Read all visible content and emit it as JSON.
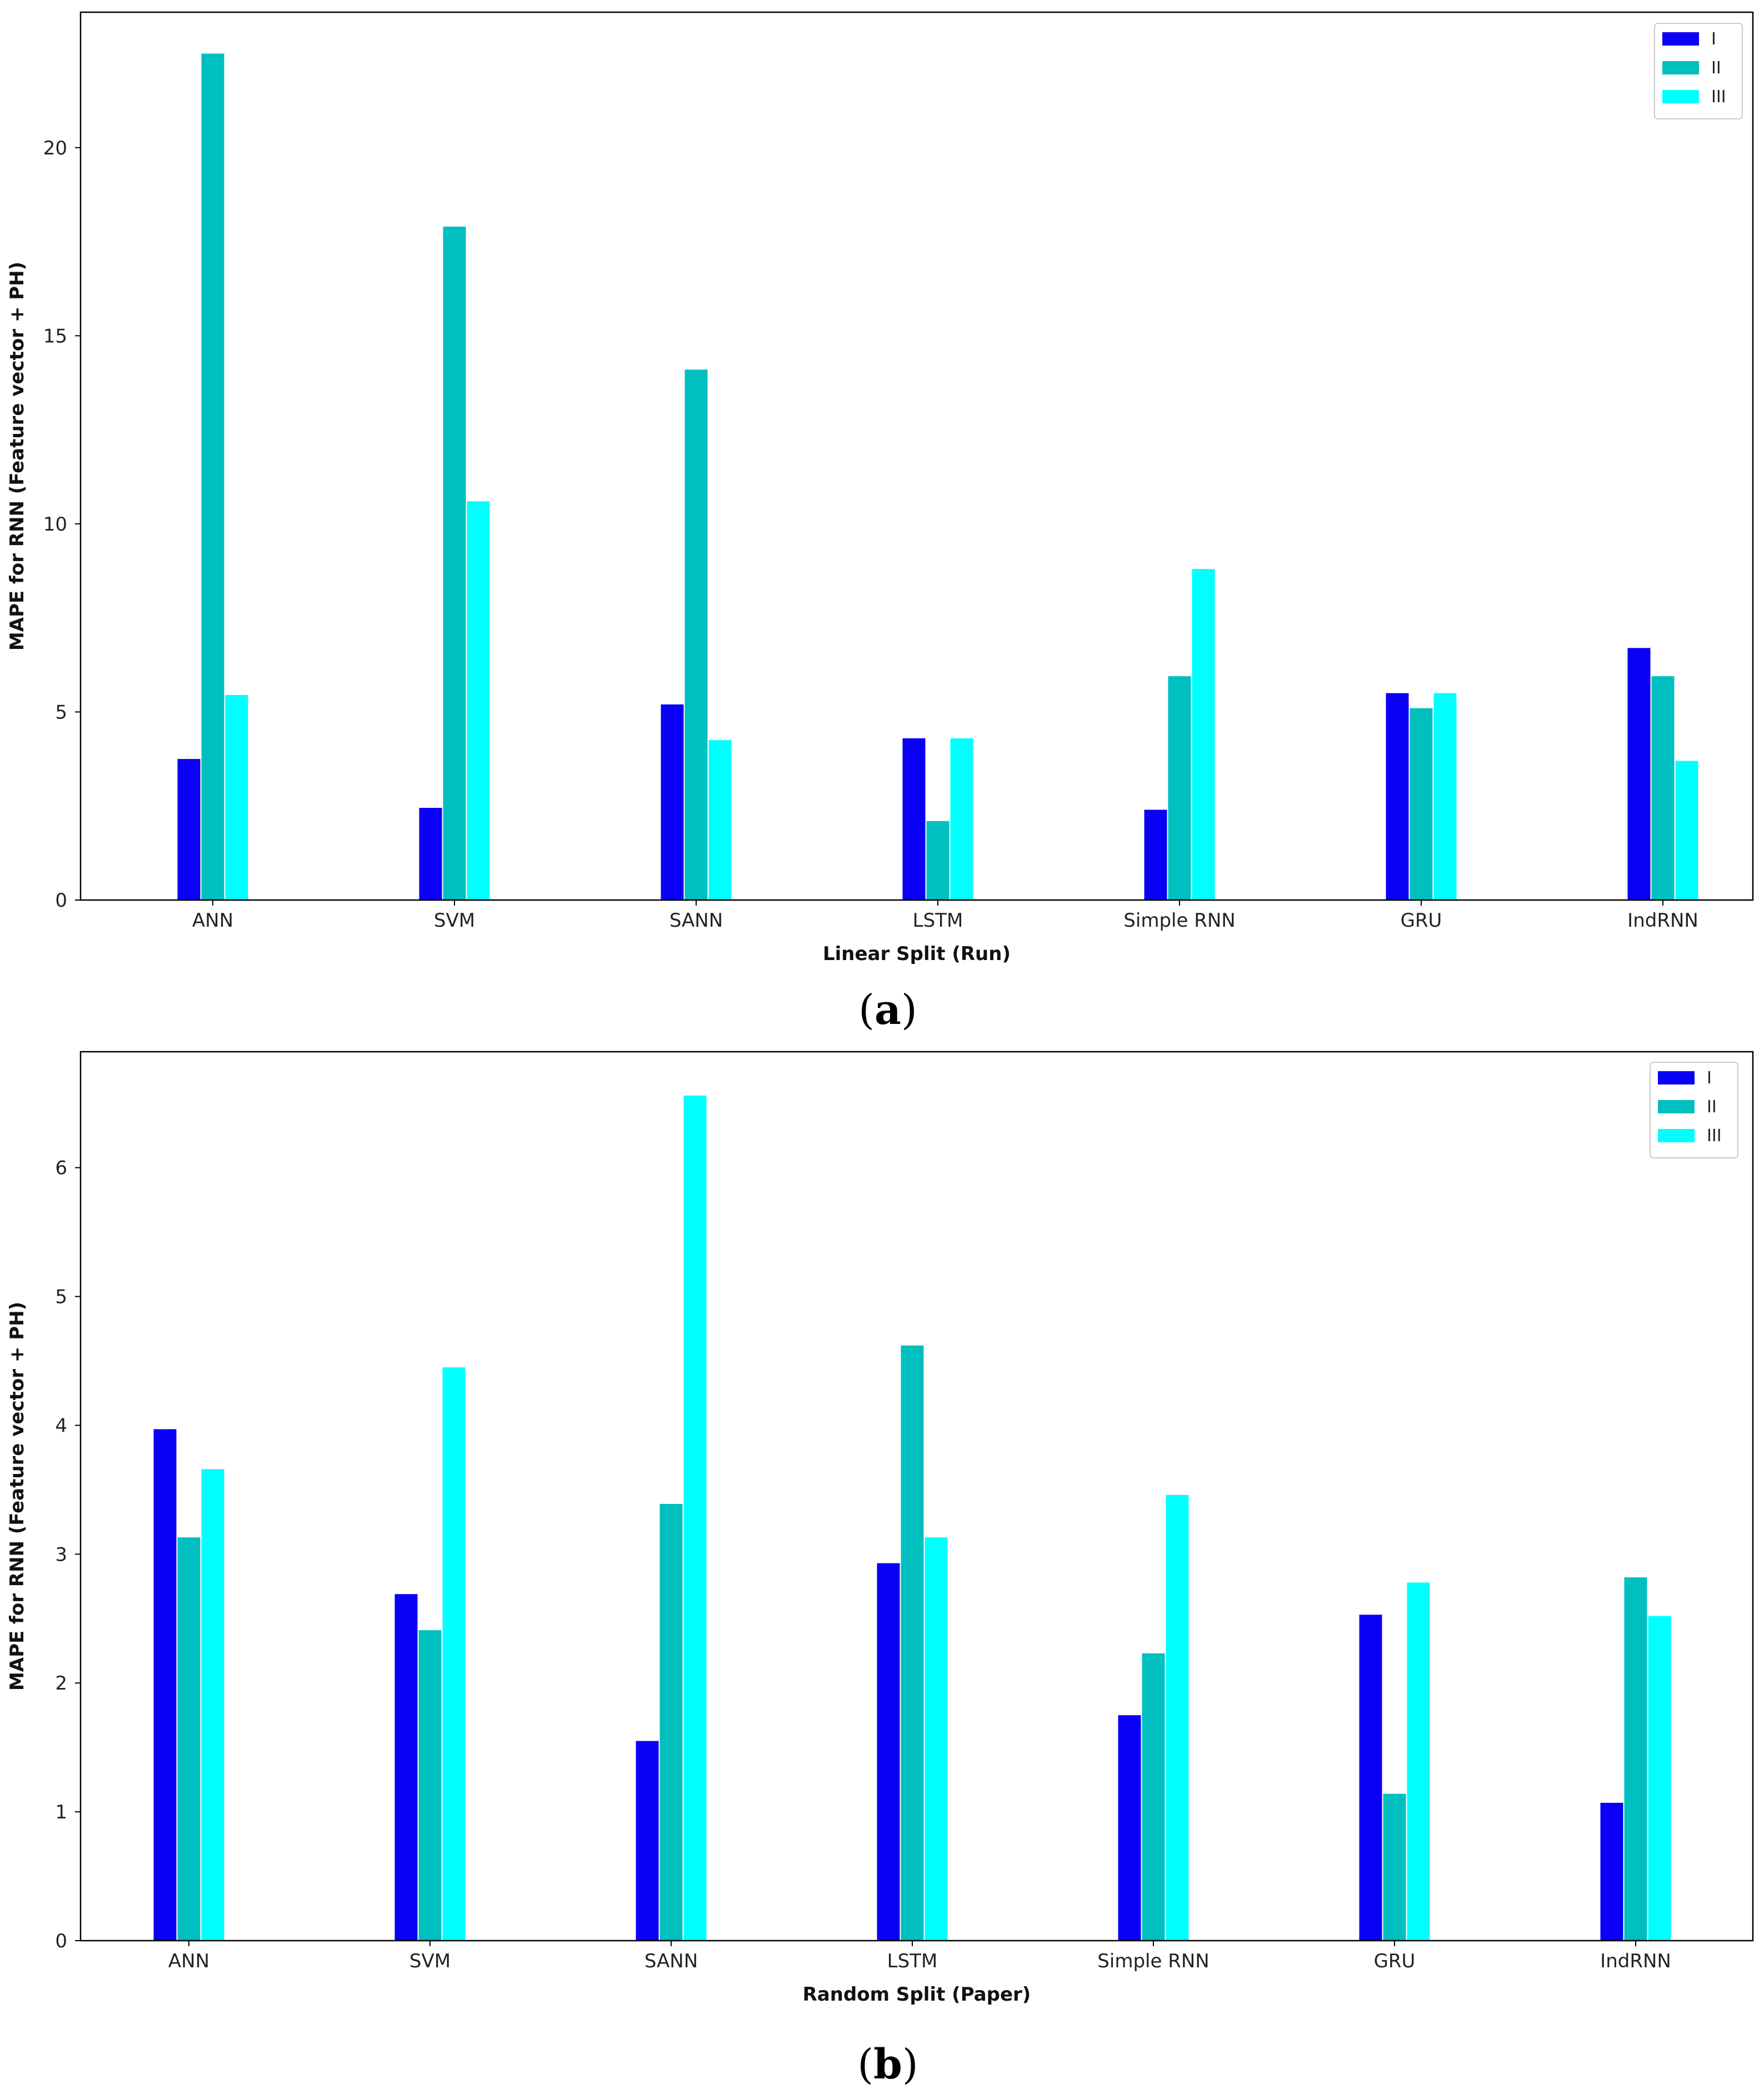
{
  "chart_data": [
    {
      "type": "bar",
      "panel": "a",
      "categories": [
        "ANN",
        "SVM",
        "SANN",
        "LSTM",
        "Simple RNN",
        "GRU",
        "IndRNN"
      ],
      "series": [
        {
          "name": "I",
          "color": "#0a00f5",
          "values": [
            3.75,
            2.45,
            5.2,
            4.3,
            2.4,
            5.5,
            6.7
          ]
        },
        {
          "name": "II",
          "color": "#00bfbf",
          "values": [
            22.5,
            17.9,
            14.1,
            2.1,
            5.95,
            5.1,
            5.95
          ]
        },
        {
          "name": "III",
          "color": "#00ffff",
          "values": [
            5.45,
            10.6,
            4.25,
            4.3,
            8.8,
            5.5,
            3.7
          ]
        }
      ],
      "title": "",
      "xlabel": "Linear Split (Run)",
      "ylabel": "MAPE for RNN (Feature vector + PH)",
      "ylim": [
        0,
        23.6
      ],
      "yticks": [
        "0",
        "5",
        "10",
        "15",
        "20"
      ],
      "legend_position": "top-right"
    },
    {
      "type": "bar",
      "panel": "b",
      "categories": [
        "ANN",
        "SVM",
        "SANN",
        "LSTM",
        "Simple RNN",
        "GRU",
        "IndRNN"
      ],
      "series": [
        {
          "name": "I",
          "color": "#0a00f5",
          "values": [
            3.97,
            2.69,
            1.55,
            2.93,
            1.75,
            2.53,
            1.07
          ]
        },
        {
          "name": "II",
          "color": "#00bfbf",
          "values": [
            3.13,
            2.41,
            3.39,
            4.62,
            2.23,
            1.14,
            2.82
          ]
        },
        {
          "name": "III",
          "color": "#00ffff",
          "values": [
            3.66,
            4.45,
            6.56,
            3.13,
            3.46,
            2.78,
            2.52
          ]
        }
      ],
      "title": "",
      "xlabel": "Random Split (Paper)",
      "ylabel": "MAPE for RNN (Feature vector + PH)",
      "ylim": [
        0,
        6.9
      ],
      "yticks": [
        "0",
        "1",
        "2",
        "3",
        "4",
        "5",
        "6"
      ],
      "legend_position": "top-right"
    }
  ],
  "captions": {
    "a": {
      "open": "(",
      "letter": "a",
      "close": ")"
    },
    "b": {
      "open": "(",
      "letter": "b",
      "close": ")"
    }
  }
}
